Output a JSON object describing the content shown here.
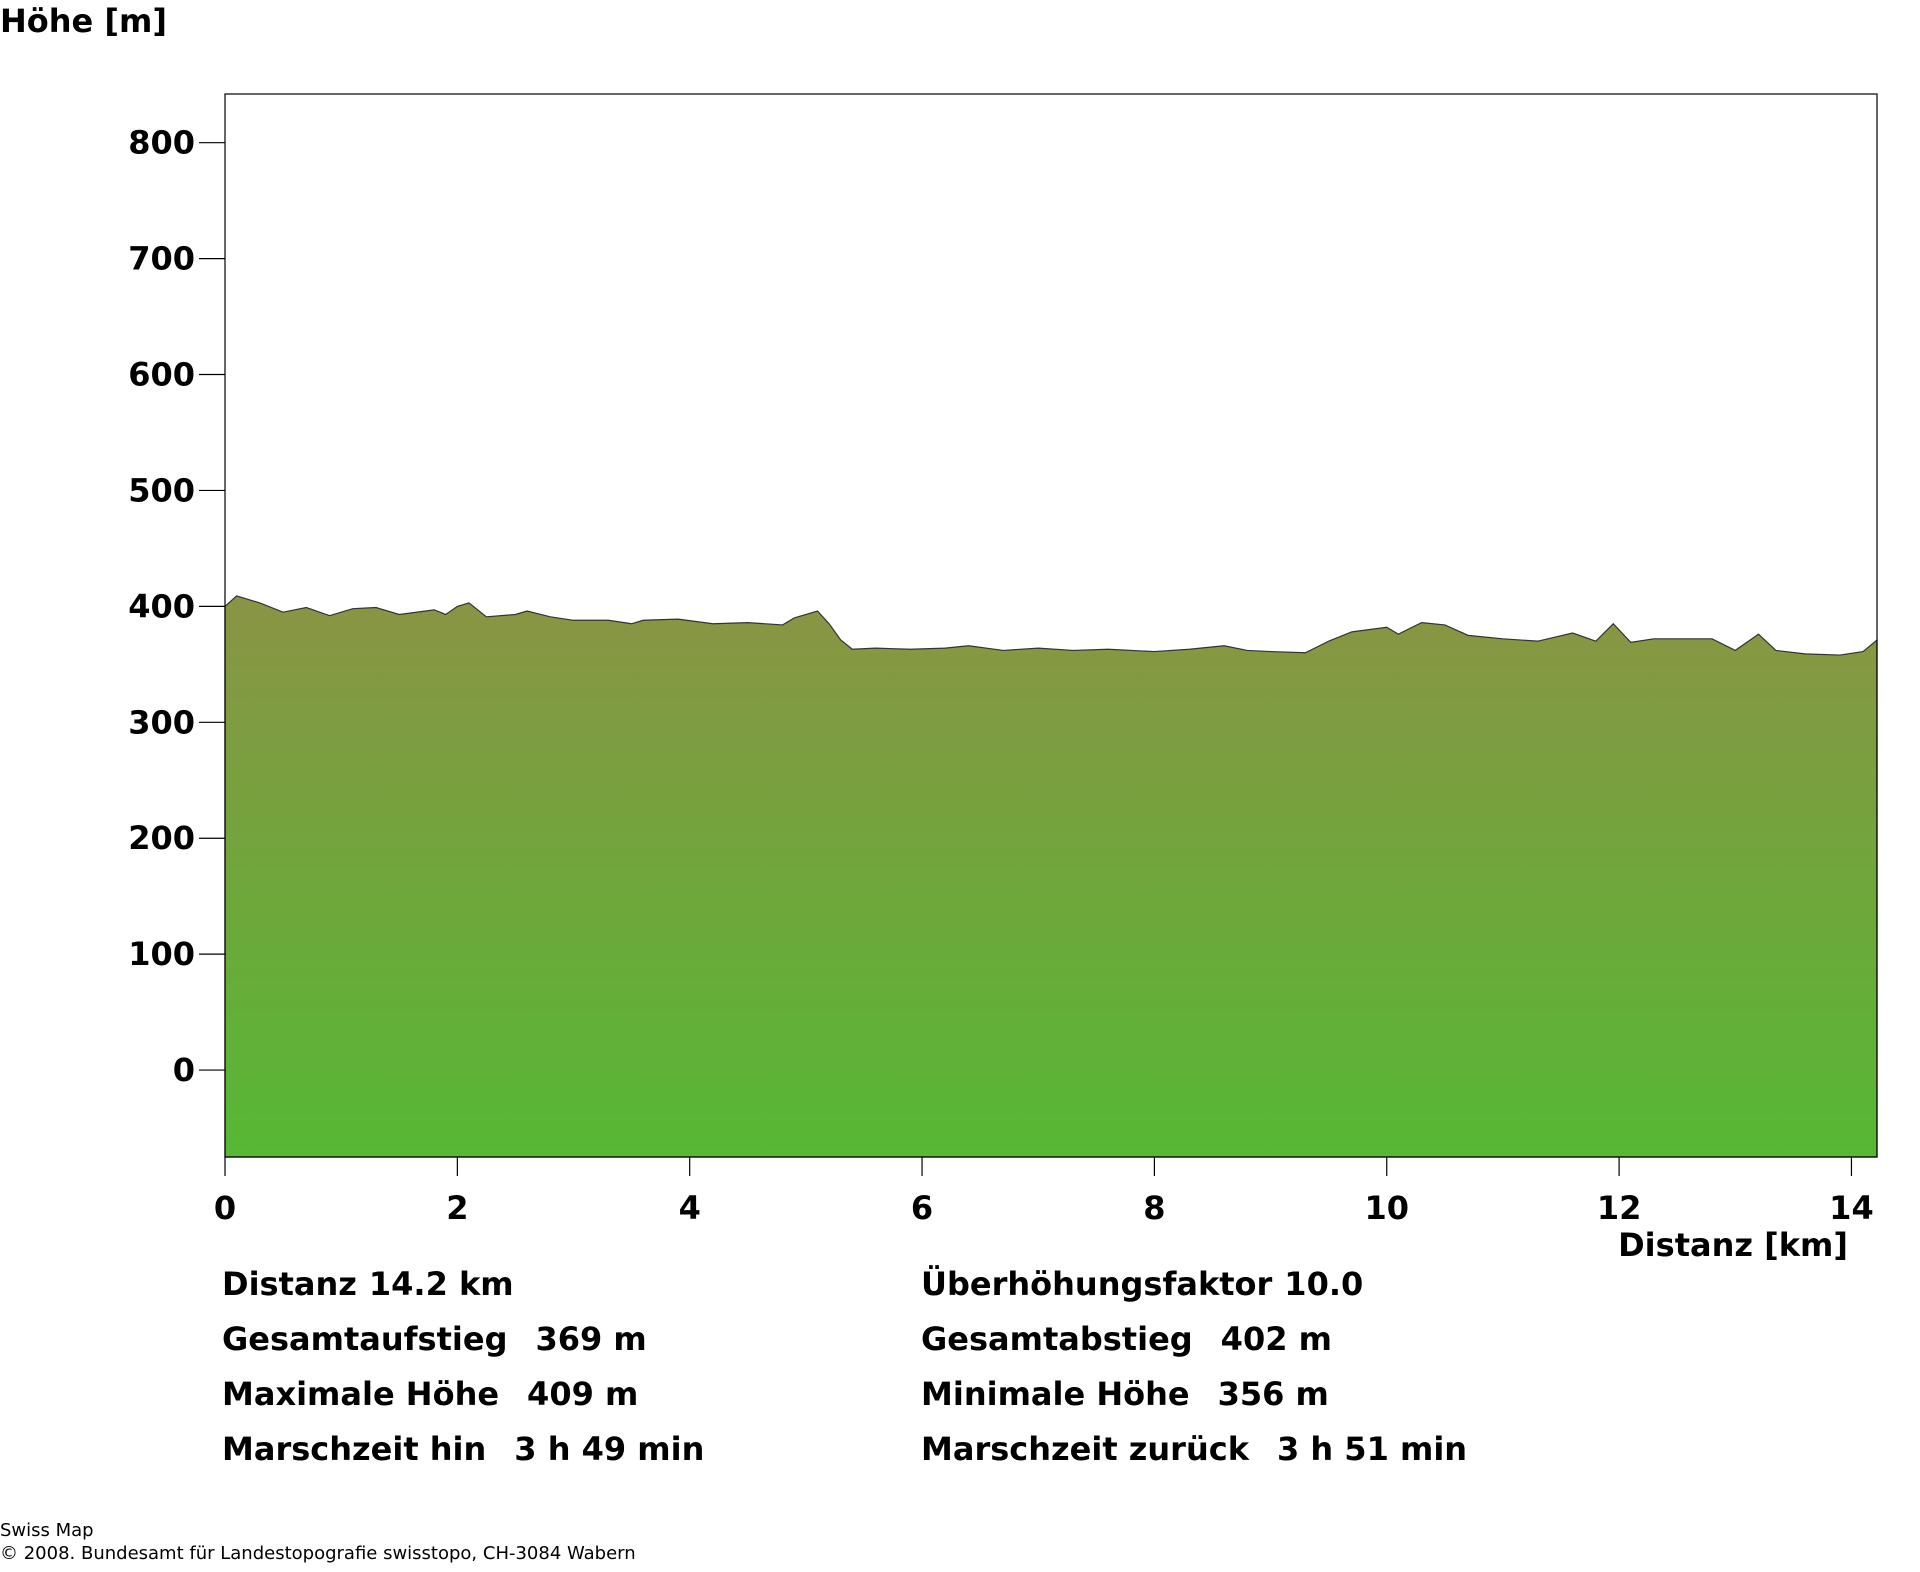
{
  "chart_data": {
    "type": "area",
    "title": "Höhe [m]",
    "x_label": "Distanz [km]",
    "x": [
      0,
      0.1,
      0.3,
      0.5,
      0.7,
      0.9,
      1.1,
      1.3,
      1.5,
      1.8,
      1.9,
      2.0,
      2.1,
      2.25,
      2.5,
      2.6,
      2.8,
      3.0,
      3.3,
      3.5,
      3.6,
      3.9,
      4.2,
      4.5,
      4.8,
      4.9,
      5.1,
      5.2,
      5.3,
      5.4,
      5.6,
      5.9,
      6.2,
      6.4,
      6.7,
      7.0,
      7.3,
      7.6,
      8.0,
      8.3,
      8.6,
      8.8,
      9.0,
      9.3,
      9.5,
      9.7,
      10.0,
      10.1,
      10.3,
      10.5,
      10.7,
      11.0,
      11.3,
      11.6,
      11.8,
      11.95,
      12.1,
      12.3,
      12.6,
      12.8,
      13.0,
      13.2,
      13.35,
      13.6,
      13.9,
      14.1,
      14.22
    ],
    "values": [
      400,
      409,
      403,
      395,
      399,
      392,
      398,
      399,
      393,
      397,
      393,
      400,
      403,
      391,
      393,
      396,
      391,
      388,
      388,
      385,
      388,
      389,
      385,
      386,
      384,
      390,
      396,
      385,
      371,
      363,
      364,
      363,
      364,
      366,
      362,
      364,
      362,
      363,
      361,
      363,
      366,
      362,
      361,
      360,
      370,
      378,
      382,
      376,
      386,
      384,
      375,
      372,
      370,
      377,
      370,
      385,
      369,
      372,
      372,
      372,
      362,
      376,
      362,
      359,
      358,
      361,
      371
    ],
    "gradient": [
      "#8a9444",
      "#56b834"
    ],
    "xlim": [
      0,
      14.22
    ],
    "ylim": [
      -75,
      842
    ],
    "xticks": [
      0,
      2,
      4,
      6,
      8,
      10,
      12,
      14
    ],
    "yticks": [
      0,
      100,
      200,
      300,
      400,
      500,
      600,
      700,
      800
    ],
    "stats": [
      {
        "label": "Distanz",
        "value": "14.2 km"
      },
      {
        "label": "Überhöhungsfaktor",
        "value": "10.0"
      },
      {
        "label": "Gesamtaufstieg",
        "value": "369 m"
      },
      {
        "label": "Gesamtabstieg",
        "value": "402 m"
      },
      {
        "label": "Maximale Höhe",
        "value": "409 m"
      },
      {
        "label": "Minimale Höhe",
        "value": "356 m"
      },
      {
        "label": "Marschzeit hin",
        "value": "3 h 49 min"
      },
      {
        "label": "Marschzeit zurück",
        "value": "3 h 51 min"
      }
    ],
    "footer": [
      "Swiss Map",
      "© 2008. Bundesamt für Landestopografie swisstopo, CH-3084 Wabern"
    ]
  }
}
